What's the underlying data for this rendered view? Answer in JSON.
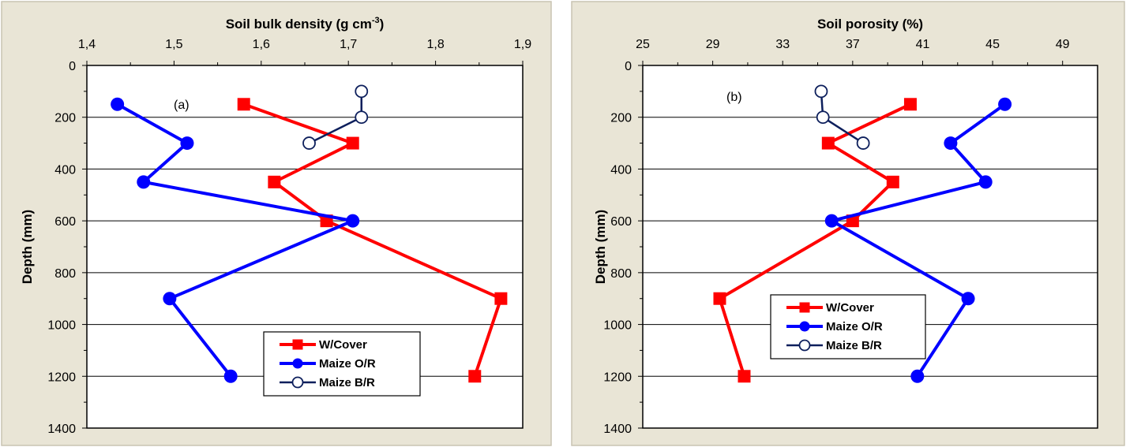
{
  "chart_data": [
    {
      "type": "line",
      "annotation": "(a)",
      "xlabel": "Soil bulk density (g cm",
      "xlabel_sup": "-3",
      "xlabel_end": ")",
      "ylabel": "Depth (mm)",
      "xlim": [
        1.4,
        1.9
      ],
      "ylim": [
        0,
        1400
      ],
      "x_ticks": [
        "1,4",
        "1,5",
        "1,6",
        "1,7",
        "1,8",
        "1,9"
      ],
      "y_ticks": [
        "0",
        "200",
        "400",
        "600",
        "800",
        "1000",
        "1200",
        "1400"
      ],
      "grid": "horizontal",
      "legend_position": "bottom-right",
      "series": [
        {
          "name": "W/Cover",
          "color": "#ff0000",
          "marker": "square",
          "x": [
            1.58,
            1.705,
            1.615,
            1.675,
            1.875,
            1.845
          ],
          "y": [
            150,
            300,
            450,
            600,
            900,
            1200
          ]
        },
        {
          "name": "Maize O/R",
          "color": "#0000ff",
          "marker": "circle",
          "x": [
            1.435,
            1.515,
            1.465,
            1.705,
            1.495,
            1.565
          ],
          "y": [
            150,
            300,
            450,
            600,
            900,
            1200
          ]
        },
        {
          "name": "Maize B/R",
          "color": "#0d1f5c",
          "marker": "open-circle",
          "x": [
            1.715,
            1.715,
            1.655
          ],
          "y": [
            100,
            200,
            300
          ]
        }
      ]
    },
    {
      "type": "line",
      "annotation": "(b)",
      "xlabel": "Soil porosity (%)",
      "xlabel_sup": "",
      "xlabel_end": "",
      "ylabel": "Depth (mm)",
      "xlim": [
        25,
        51
      ],
      "ylim": [
        0,
        1400
      ],
      "x_ticks": [
        "25",
        "29",
        "33",
        "37",
        "41",
        "45",
        "49"
      ],
      "y_ticks": [
        "0",
        "200",
        "400",
        "600",
        "800",
        "1000",
        "1200",
        "1400"
      ],
      "grid": "horizontal",
      "legend_position": "lower-center",
      "series": [
        {
          "name": "W/Cover",
          "color": "#ff0000",
          "marker": "square",
          "x": [
            40.3,
            35.6,
            39.3,
            37.0,
            29.4,
            30.8
          ],
          "y": [
            150,
            300,
            450,
            600,
            900,
            1200
          ]
        },
        {
          "name": "Maize O/R",
          "color": "#0000ff",
          "marker": "circle",
          "x": [
            45.7,
            42.6,
            44.6,
            35.8,
            43.6,
            40.7
          ],
          "y": [
            150,
            300,
            450,
            600,
            900,
            1200
          ]
        },
        {
          "name": "Maize B/R",
          "color": "#0d1f5c",
          "marker": "open-circle",
          "x": [
            35.2,
            35.3,
            37.6
          ],
          "y": [
            100,
            200,
            300
          ]
        }
      ]
    }
  ]
}
